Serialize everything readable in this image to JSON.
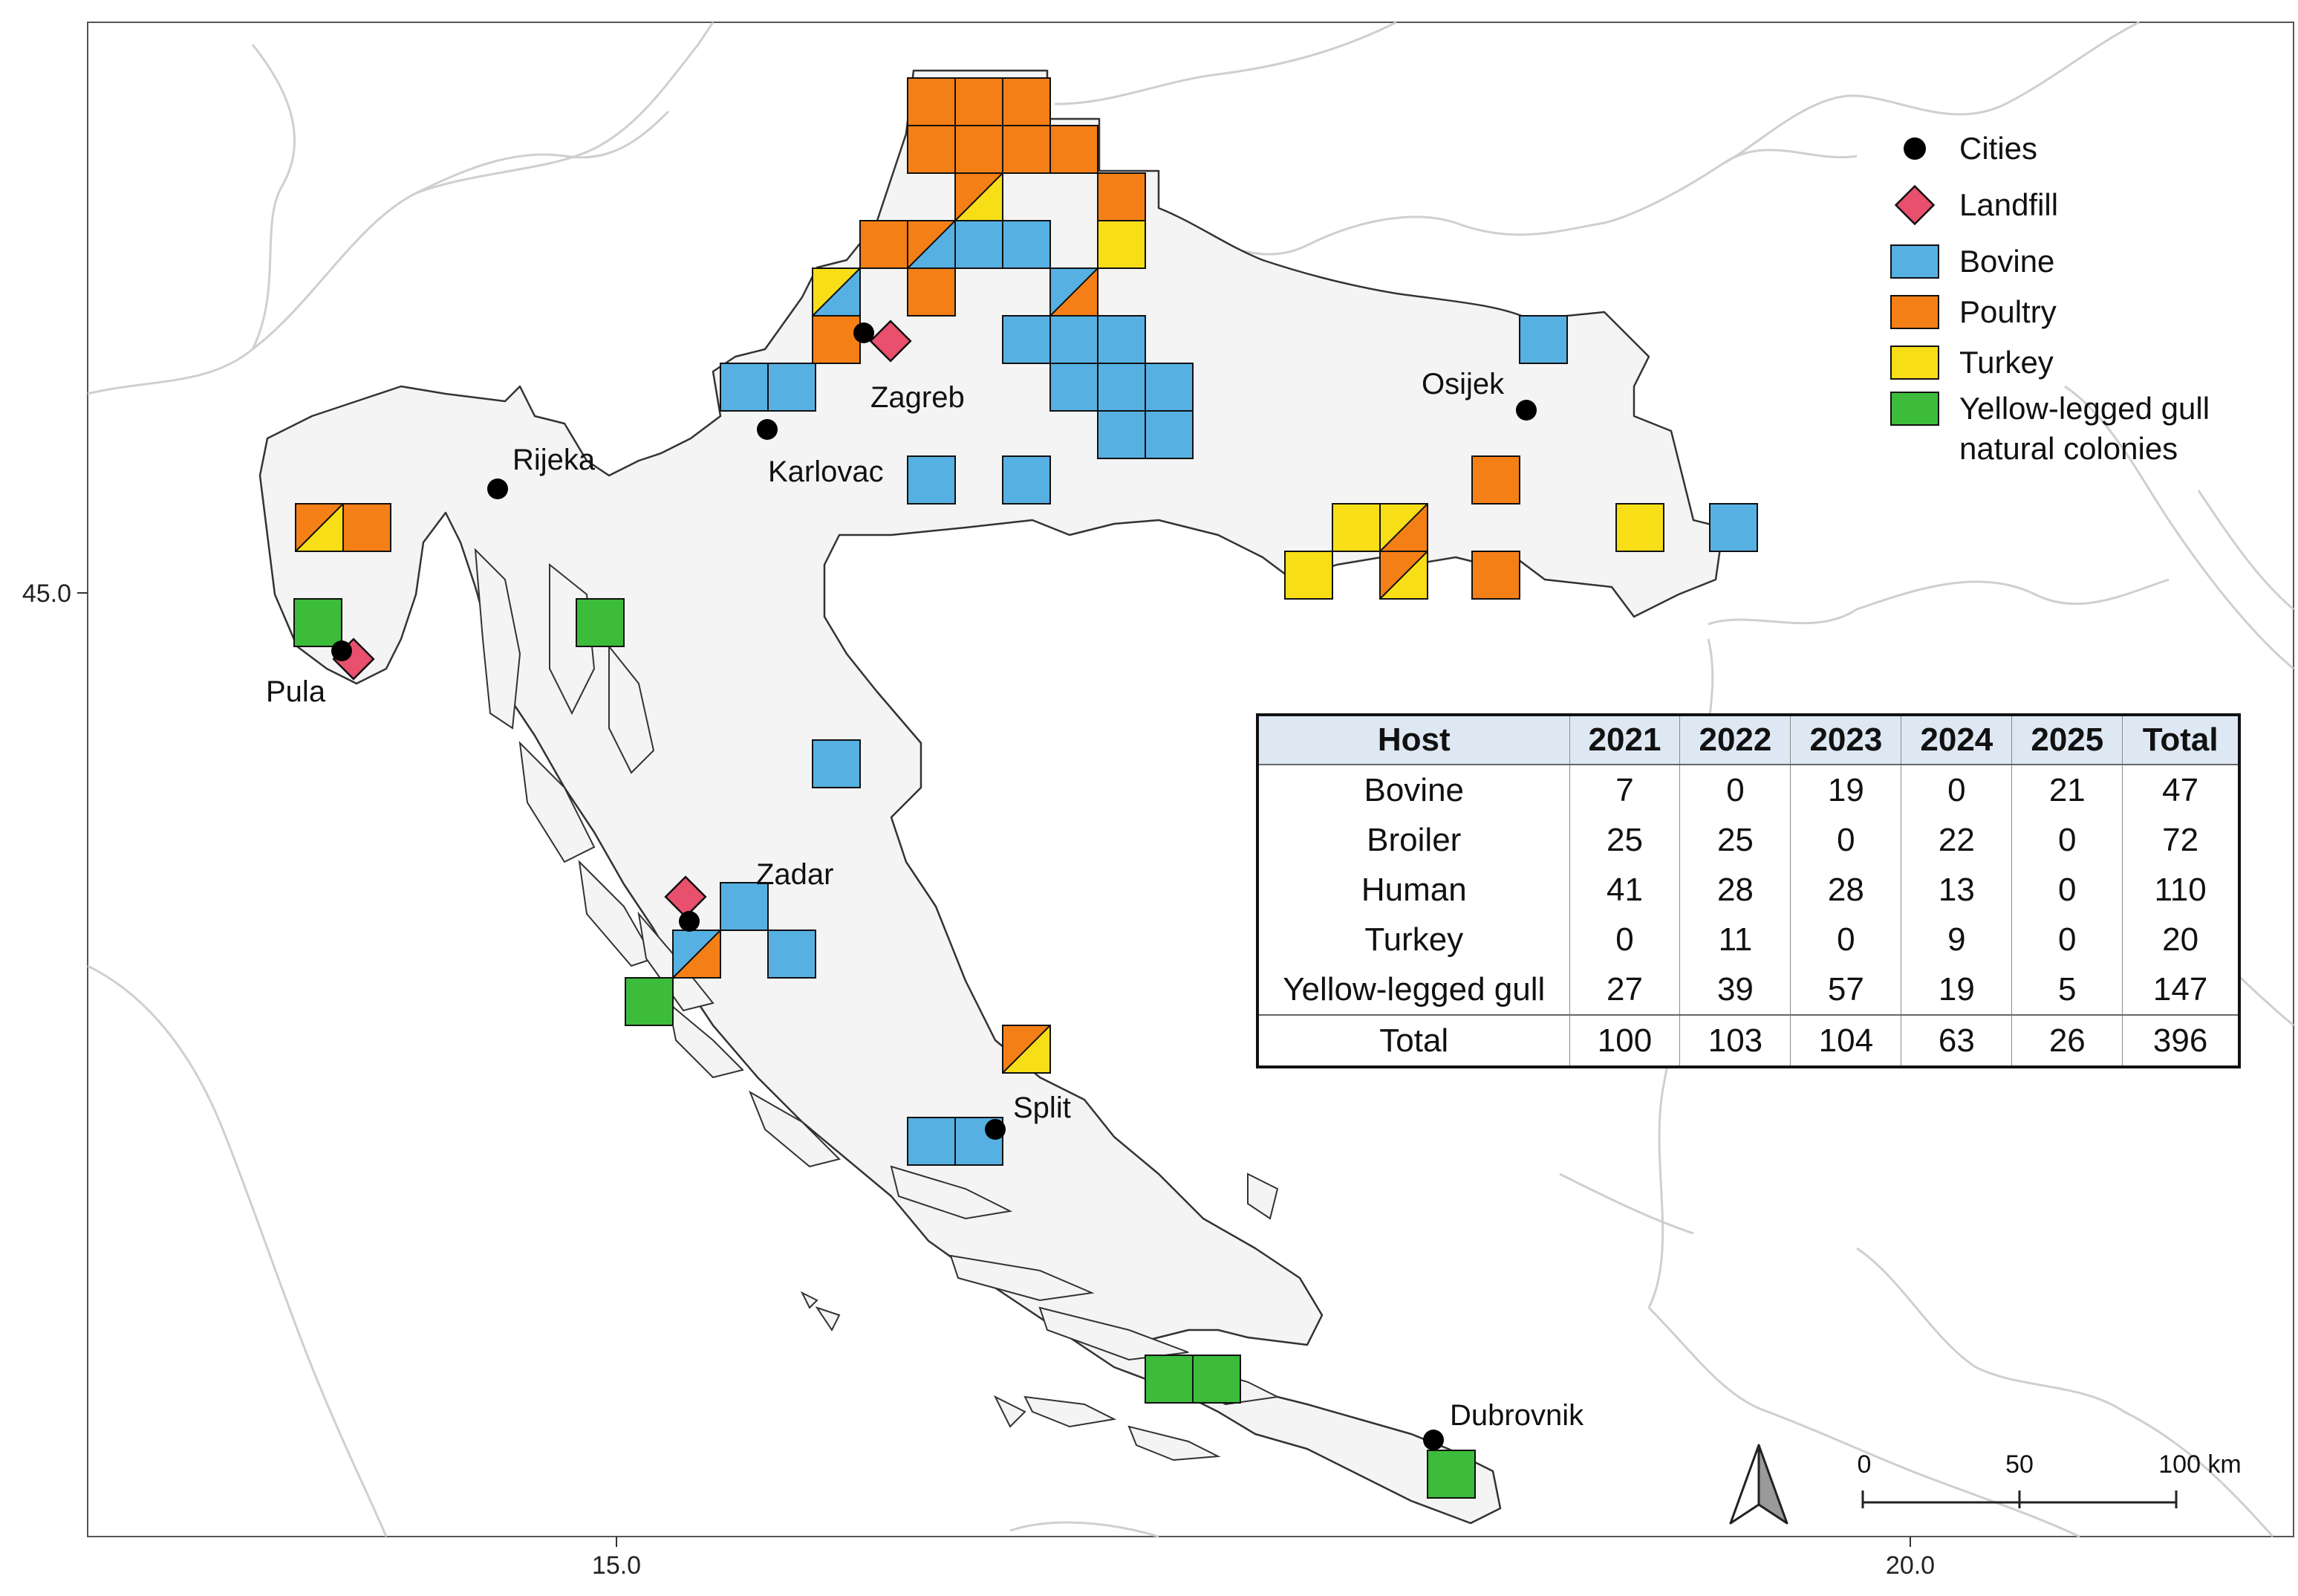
{
  "legend": {
    "cities": "Cities",
    "landfill": "Landfill",
    "bovine": "Bovine",
    "poultry": "Poultry",
    "turkey": "Turkey",
    "gull_line1": "Yellow-legged gull",
    "gull_line2": "natural colonies"
  },
  "colors": {
    "bovine": "#56b0e2",
    "poultry": "#f47f17",
    "turkey": "#f7de17",
    "gull": "#3cbc3a",
    "landfill": "#e9506d",
    "country_fill": "#f4f4f4",
    "neighbor_border": "#cfcfcf"
  },
  "cities": [
    {
      "name": "Zagreb"
    },
    {
      "name": "Karlovac"
    },
    {
      "name": "Osijek"
    },
    {
      "name": "Rijeka"
    },
    {
      "name": "Pula"
    },
    {
      "name": "Zadar"
    },
    {
      "name": "Split"
    },
    {
      "name": "Dubrovnik"
    }
  ],
  "axes": {
    "lat_tick": "45.0",
    "lon_ticks": [
      "15.0",
      "20.0"
    ]
  },
  "scale_bar": {
    "labels": [
      "0",
      "50",
      "100 km"
    ]
  },
  "north_arrow": {
    "icon": "north-arrow-icon"
  },
  "table": {
    "headers": [
      "Host",
      "2021",
      "2022",
      "2023",
      "2024",
      "2025",
      "Total"
    ],
    "rows": [
      {
        "host": "Bovine",
        "values": [
          "7",
          "0",
          "19",
          "0",
          "21",
          "47"
        ]
      },
      {
        "host": "Broiler",
        "values": [
          "25",
          "25",
          "0",
          "22",
          "0",
          "72"
        ]
      },
      {
        "host": "Human",
        "values": [
          "41",
          "28",
          "28",
          "13",
          "0",
          "110"
        ]
      },
      {
        "host": "Turkey",
        "values": [
          "0",
          "11",
          "0",
          "9",
          "0",
          "20"
        ]
      },
      {
        "host": "Yellow-legged gull",
        "values": [
          "27",
          "39",
          "57",
          "19",
          "5",
          "147"
        ]
      },
      {
        "host": "Total",
        "values": [
          "100",
          "103",
          "104",
          "63",
          "26",
          "396"
        ]
      }
    ]
  }
}
